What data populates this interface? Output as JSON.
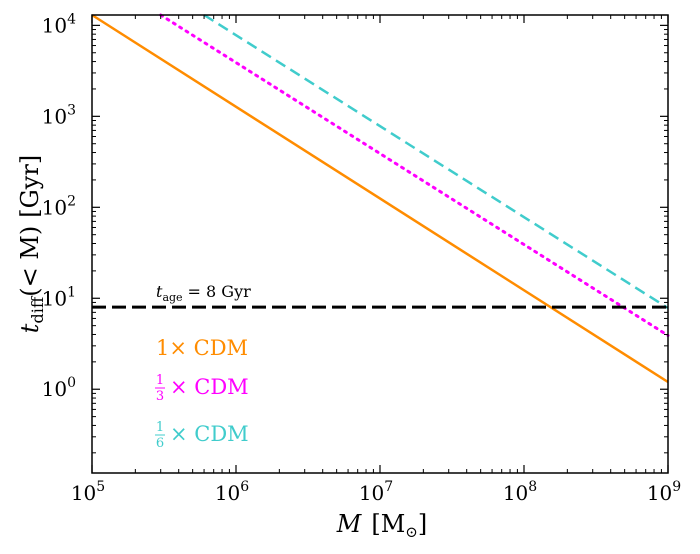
{
  "chart_data": {
    "type": "line",
    "xscale": "log",
    "yscale": "log",
    "xlim": [
      100000,
      1000000000
    ],
    "ylim": [
      0.12,
      13000
    ],
    "x_ticks": [
      {
        "value": 100000,
        "base": "10",
        "exp": "5"
      },
      {
        "value": 1000000,
        "base": "10",
        "exp": "6"
      },
      {
        "value": 10000000,
        "base": "10",
        "exp": "7"
      },
      {
        "value": 100000000,
        "base": "10",
        "exp": "8"
      },
      {
        "value": 1000000000,
        "base": "10",
        "exp": "9"
      }
    ],
    "y_ticks": [
      {
        "value": 1,
        "base": "10",
        "exp": "0"
      },
      {
        "value": 10,
        "base": "10",
        "exp": "1"
      },
      {
        "value": 100,
        "base": "10",
        "exp": "2"
      },
      {
        "value": 1000,
        "base": "10",
        "exp": "3"
      },
      {
        "value": 10000,
        "base": "10",
        "exp": "4"
      }
    ],
    "xlabel": {
      "symbol": "M",
      "unit_open": "[M",
      "unit_sub": "⊙",
      "unit_close": "]"
    },
    "ylabel": {
      "symbol": "t",
      "sub": "diff",
      "expr": "(< M)",
      "unit": "[Gyr]"
    },
    "series": [
      {
        "name": "1× CDM",
        "label_main": "1× CDM",
        "color": "#ff8c00",
        "dash": "solid",
        "x": [
          100000,
          1000000000
        ],
        "y": [
          13000,
          1.2
        ]
      },
      {
        "name": "1/3× CDM",
        "frac_num": "1",
        "frac_den": "3",
        "label_rest": "× CDM",
        "color": "#ff00ff",
        "dash": "dotted",
        "x": [
          300000,
          1000000000
        ],
        "y": [
          13000,
          3.9
        ]
      },
      {
        "name": "1/6× CDM",
        "frac_num": "1",
        "frac_den": "6",
        "label_rest": "× CDM",
        "color": "#40cccc",
        "dash": "dashed",
        "x": [
          600000,
          1000000000
        ],
        "y": [
          13000,
          7.8
        ]
      }
    ],
    "hline": {
      "y": 8,
      "color": "#000000",
      "dash": "dashed",
      "label_sym": "t",
      "label_sub": "age",
      "label_rest": "= 8 Gyr"
    }
  }
}
